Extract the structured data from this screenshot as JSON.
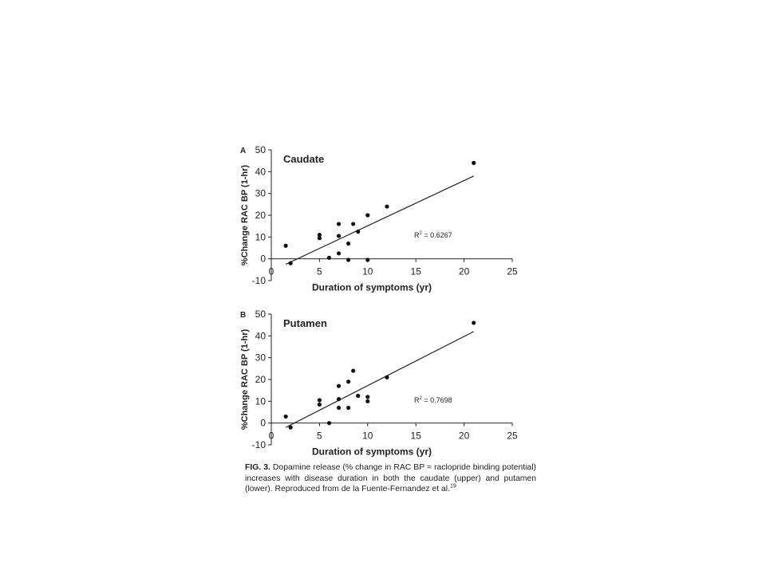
{
  "figure_colors": {
    "axis": "#222222",
    "points": "#111111",
    "background": "#ffffff"
  },
  "chart_data": [
    {
      "type": "scatter",
      "panel_letter": "A",
      "title": "Caudate",
      "xlabel": "Duration of symptoms (yr)",
      "ylabel": "%Change RAC BP (1-hr)",
      "xlim": [
        0,
        25
      ],
      "ylim": [
        -10,
        50
      ],
      "xticks": [
        0,
        5,
        10,
        15,
        20,
        25
      ],
      "yticks": [
        -10,
        0,
        10,
        20,
        30,
        40,
        50
      ],
      "grid": false,
      "legend": "none",
      "points": [
        {
          "x": 1.5,
          "y": 6
        },
        {
          "x": 2,
          "y": -2
        },
        {
          "x": 5,
          "y": 9.5
        },
        {
          "x": 5,
          "y": 11
        },
        {
          "x": 6,
          "y": 0.5
        },
        {
          "x": 7,
          "y": 10.5
        },
        {
          "x": 7,
          "y": 16
        },
        {
          "x": 7,
          "y": 2.5
        },
        {
          "x": 8,
          "y": 7
        },
        {
          "x": 8,
          "y": -0.5
        },
        {
          "x": 8.5,
          "y": 16
        },
        {
          "x": 9,
          "y": 12.5
        },
        {
          "x": 10,
          "y": 20
        },
        {
          "x": 10,
          "y": -0.5
        },
        {
          "x": 12,
          "y": 24
        },
        {
          "x": 21,
          "y": 44
        }
      ],
      "trendline": {
        "x": [
          1.5,
          21
        ],
        "y": [
          -2.5,
          38
        ]
      },
      "annotation": {
        "prefix": "R",
        "sup": "2",
        "suffix": " = 0.6267"
      }
    },
    {
      "type": "scatter",
      "panel_letter": "B",
      "title": "Putamen",
      "xlabel": "Duration of symptoms (yr)",
      "ylabel": "%Change RAC BP (1-hr)",
      "xlim": [
        0,
        25
      ],
      "ylim": [
        -10,
        50
      ],
      "xticks": [
        0,
        5,
        10,
        15,
        20,
        25
      ],
      "yticks": [
        -10,
        0,
        10,
        20,
        30,
        40,
        50
      ],
      "grid": false,
      "legend": "none",
      "points": [
        {
          "x": 1.5,
          "y": 3
        },
        {
          "x": 2,
          "y": -2
        },
        {
          "x": 5,
          "y": 8.5
        },
        {
          "x": 5,
          "y": 10.5
        },
        {
          "x": 6,
          "y": 0
        },
        {
          "x": 7,
          "y": 11
        },
        {
          "x": 7,
          "y": 17
        },
        {
          "x": 7,
          "y": 7
        },
        {
          "x": 8,
          "y": 19
        },
        {
          "x": 8,
          "y": 7
        },
        {
          "x": 8.5,
          "y": 24
        },
        {
          "x": 9,
          "y": 12.5
        },
        {
          "x": 10,
          "y": 12
        },
        {
          "x": 10,
          "y": 10
        },
        {
          "x": 12,
          "y": 21
        },
        {
          "x": 21,
          "y": 46
        }
      ],
      "trendline": {
        "x": [
          1.5,
          21
        ],
        "y": [
          -2,
          42
        ]
      },
      "annotation": {
        "prefix": "R",
        "sup": "2",
        "suffix": " = 0.7698"
      }
    }
  ],
  "caption": {
    "label": "FIG. 3.",
    "text": " Dopamine release (% change in RAC BP = raclopride binding potential) increases with disease duration in both the caudate (upper) and putamen (lower). Reproduced from de la Fuente-Fernandez et al.",
    "ref": "19"
  }
}
